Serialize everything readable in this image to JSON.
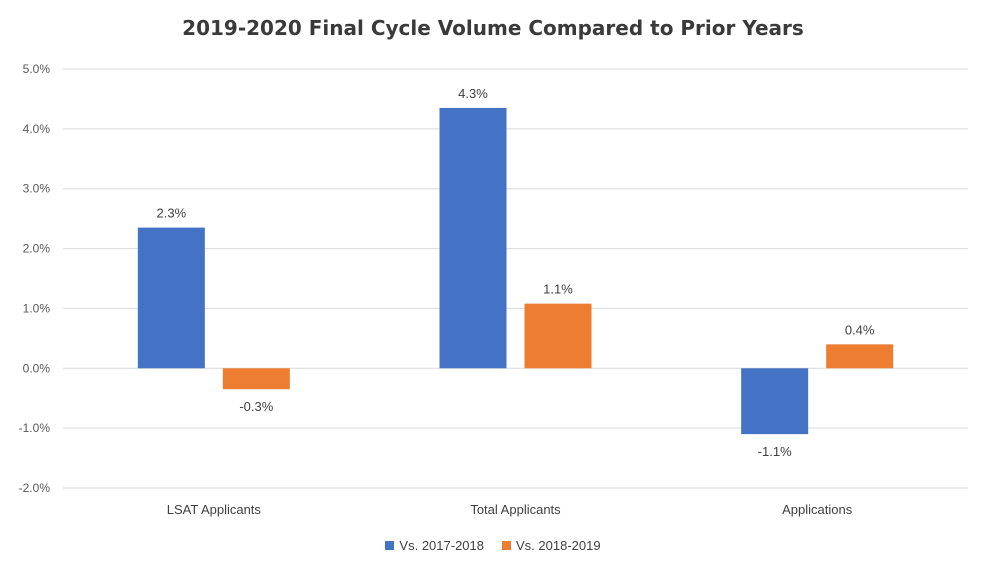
{
  "chart_data": {
    "type": "bar",
    "title": "2019-2020 Final Cycle Volume Compared to Prior Years",
    "categories": [
      "LSAT Applicants",
      "Total Applicants",
      "Applications"
    ],
    "series": [
      {
        "name": "Vs. 2017-2018",
        "color": "#4472C4",
        "values": [
          2.35,
          4.35,
          -1.1
        ],
        "labels": [
          "2.3%",
          "4.3%",
          "-1.1%"
        ]
      },
      {
        "name": "Vs. 2018-2019",
        "color": "#ED7D31",
        "values": [
          -0.35,
          1.08,
          0.4
        ],
        "labels": [
          "-0.3%",
          "1.1%",
          "0.4%"
        ]
      }
    ],
    "ylim": [
      -2.0,
      5.0
    ],
    "yticks": [
      "5.0%",
      "4.0%",
      "3.0%",
      "2.0%",
      "1.0%",
      "0.0%",
      "-1.0%",
      "-2.0%"
    ],
    "ytick_values": [
      5.0,
      4.0,
      3.0,
      2.0,
      1.0,
      0.0,
      -1.0,
      -2.0
    ],
    "grid": true,
    "legend_position": "bottom"
  }
}
